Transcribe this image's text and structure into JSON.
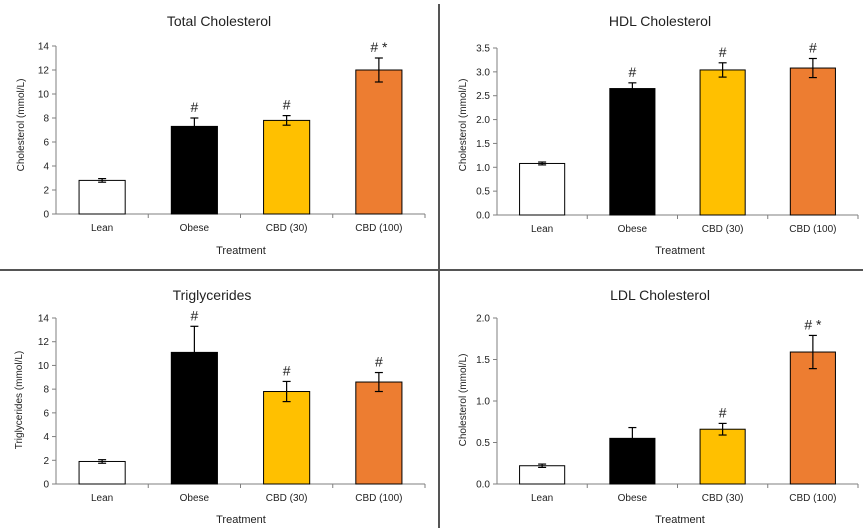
{
  "colors": {
    "lean": "#ffffff",
    "obese": "#000000",
    "cbd30": "#ffc000",
    "cbd100": "#ed7d31",
    "axis": "#7f7f7f",
    "divider": "#555555"
  },
  "chart_data": [
    {
      "type": "bar",
      "title": "Total Cholesterol",
      "xlabel": "Treatment",
      "ylabel": "Cholesterol (mmol/L)",
      "ylim": [
        0,
        14
      ],
      "yticks": [
        "0",
        "2",
        "4",
        "6",
        "8",
        "10",
        "12",
        "14"
      ],
      "categories": [
        "Lean",
        "Obese",
        "CBD (30)",
        "CBD (100)"
      ],
      "values": [
        2.8,
        7.3,
        7.8,
        12.0
      ],
      "errors": [
        0.15,
        0.7,
        0.4,
        1.0
      ],
      "annotations": [
        "",
        "#",
        "#",
        "# *"
      ]
    },
    {
      "type": "bar",
      "title": "HDL Cholesterol",
      "xlabel": "Treatment",
      "ylabel": "Cholesterol (mmol/L)",
      "ylim": [
        0,
        3.5
      ],
      "yticks": [
        "0.0",
        "0.5",
        "1.0",
        "1.5",
        "2.0",
        "2.5",
        "3.0",
        "3.5"
      ],
      "categories": [
        "Lean",
        "Obese",
        "CBD (30)",
        "CBD (100)"
      ],
      "values": [
        1.08,
        2.65,
        3.04,
        3.08
      ],
      "errors": [
        0.03,
        0.12,
        0.15,
        0.2
      ],
      "annotations": [
        "",
        "#",
        "#",
        "#"
      ]
    },
    {
      "type": "bar",
      "title": "Triglycerides",
      "xlabel": "Treatment",
      "ylabel": "Triglycerides (mmol/L)",
      "ylim": [
        0,
        14
      ],
      "yticks": [
        "0",
        "2",
        "4",
        "6",
        "8",
        "10",
        "12",
        "14"
      ],
      "categories": [
        "Lean",
        "Obese",
        "CBD (30)",
        "CBD (100)"
      ],
      "values": [
        1.9,
        11.1,
        7.8,
        8.6
      ],
      "errors": [
        0.15,
        2.2,
        0.85,
        0.8
      ],
      "annotations": [
        "",
        "#",
        "#",
        "#"
      ]
    },
    {
      "type": "bar",
      "title": "LDL Cholesterol",
      "xlabel": "Treatment",
      "ylabel": "Cholesterol (mmol/L)",
      "ylim": [
        0,
        2.0
      ],
      "yticks": [
        "0.0",
        "0.5",
        "1.0",
        "1.5",
        "2.0"
      ],
      "categories": [
        "Lean",
        "Obese",
        "CBD (30)",
        "CBD (100)"
      ],
      "values": [
        0.22,
        0.55,
        0.66,
        1.59
      ],
      "errors": [
        0.02,
        0.13,
        0.07,
        0.2
      ],
      "annotations": [
        "",
        "",
        "#",
        "# *"
      ]
    }
  ]
}
